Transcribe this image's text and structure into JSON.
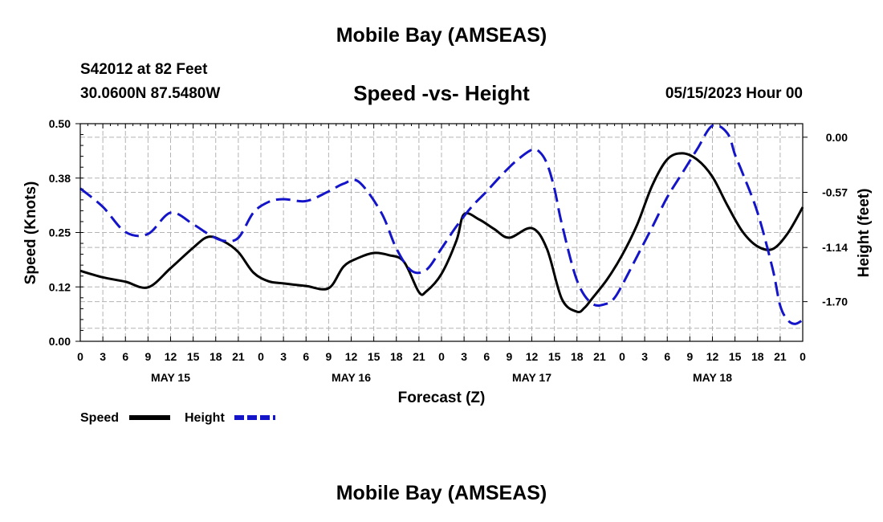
{
  "title": "Mobile Bay (AMSEAS)",
  "station_line": "S42012 at 82 Feet",
  "coords_line": "30.0600N  87.5480W",
  "datetime_line": "05/15/2023 Hour 00",
  "colors": {
    "speed": "#000000",
    "height": "#1414c8",
    "grid": "#b4b4b4"
  },
  "chart_data": {
    "type": "line",
    "title": "Speed -vs- Height",
    "xlabel": "Forecast (Z)",
    "ylabel": "Speed (Knots)",
    "y2label": "Height (feet)",
    "xlim": [
      0,
      96
    ],
    "ylim": [
      0,
      0.5
    ],
    "y2lim": [
      -2.11,
      0.14
    ],
    "x_tick_labels": [
      "0",
      "3",
      "6",
      "9",
      "12",
      "15",
      "18",
      "21",
      "0",
      "3",
      "6",
      "9",
      "12",
      "15",
      "18",
      "21",
      "0",
      "3",
      "6",
      "9",
      "12",
      "15",
      "18",
      "21",
      "0",
      "3",
      "6",
      "9",
      "12",
      "15",
      "18",
      "21",
      "0"
    ],
    "day_labels": [
      {
        "label": "MAY 15",
        "x": 12
      },
      {
        "label": "MAY 16",
        "x": 36
      },
      {
        "label": "MAY 17",
        "x": 60
      },
      {
        "label": "MAY 18",
        "x": 84
      }
    ],
    "y_ticks": [
      {
        "value": 0.0,
        "label": "0.00"
      },
      {
        "value": 0.125,
        "label": "0.12"
      },
      {
        "value": 0.25,
        "label": "0.25"
      },
      {
        "value": 0.375,
        "label": "0.38"
      },
      {
        "value": 0.5,
        "label": "0.50"
      }
    ],
    "y2_ticks": [
      {
        "value": 0.0,
        "label": "0.00"
      },
      {
        "value": -0.57,
        "label": "-0.57"
      },
      {
        "value": -1.14,
        "label": "-1.14"
      },
      {
        "value": -1.7,
        "label": "-1.70"
      }
    ],
    "series": [
      {
        "name": "Speed",
        "axis": "left",
        "style": "solid",
        "x": [
          0,
          3,
          6,
          9,
          12,
          15,
          17,
          19,
          21,
          23,
          25,
          27,
          30,
          33,
          35,
          37,
          39,
          41,
          43,
          45,
          46,
          48,
          50,
          51,
          53,
          55,
          57,
          60,
          62,
          64,
          66,
          67,
          68,
          70,
          72,
          74,
          76,
          78,
          80,
          82,
          84,
          86,
          88,
          90,
          92,
          94,
          96
        ],
        "y": [
          0.162,
          0.147,
          0.137,
          0.124,
          0.168,
          0.215,
          0.24,
          0.23,
          0.205,
          0.158,
          0.138,
          0.133,
          0.127,
          0.122,
          0.172,
          0.192,
          0.203,
          0.198,
          0.183,
          0.113,
          0.115,
          0.155,
          0.232,
          0.292,
          0.28,
          0.258,
          0.238,
          0.26,
          0.213,
          0.097,
          0.068,
          0.077,
          0.098,
          0.142,
          0.198,
          0.268,
          0.358,
          0.418,
          0.432,
          0.417,
          0.378,
          0.312,
          0.252,
          0.218,
          0.212,
          0.248,
          0.308
        ]
      },
      {
        "name": "Height",
        "axis": "right",
        "style": "dashed",
        "x": [
          0,
          3,
          6,
          9,
          12,
          15,
          17,
          19,
          21,
          23,
          25,
          27,
          30,
          33,
          35,
          37,
          40,
          42,
          44,
          46,
          48,
          50,
          52,
          54,
          56,
          58,
          60,
          61,
          62,
          63,
          64,
          66,
          68,
          70,
          71,
          72,
          74,
          76,
          78,
          80,
          82,
          84,
          86,
          87,
          88,
          90,
          92,
          93,
          94,
          95,
          96
        ],
        "y": [
          -0.53,
          -0.72,
          -0.98,
          -1.0,
          -0.78,
          -0.9,
          -1.0,
          -1.07,
          -1.04,
          -0.78,
          -0.67,
          -0.64,
          -0.66,
          -0.56,
          -0.48,
          -0.46,
          -0.78,
          -1.15,
          -1.38,
          -1.37,
          -1.15,
          -0.92,
          -0.72,
          -0.56,
          -0.39,
          -0.24,
          -0.13,
          -0.15,
          -0.27,
          -0.53,
          -0.9,
          -1.48,
          -1.72,
          -1.72,
          -1.66,
          -1.53,
          -1.23,
          -0.93,
          -0.62,
          -0.37,
          -0.12,
          0.12,
          0.04,
          -0.18,
          -0.37,
          -0.78,
          -1.36,
          -1.74,
          -1.89,
          -1.93,
          -1.89
        ]
      }
    ]
  }
}
